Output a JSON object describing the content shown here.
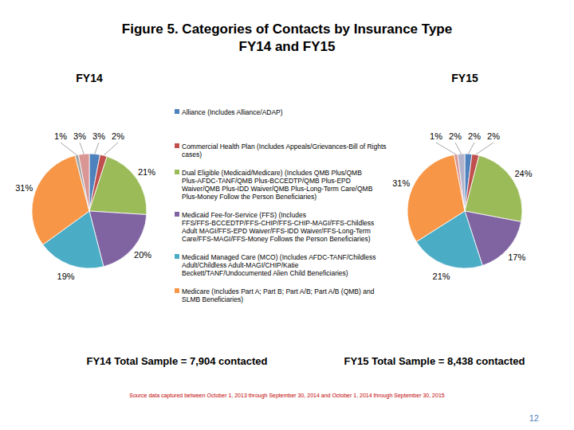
{
  "title": [
    "Figure 5.  Categories of Contacts by Insurance Type",
    "FY14 and FY15"
  ],
  "categories": [
    "Alliance (Includes Alliance/ADAP)",
    "Commercial Health Plan (Includes Appeals/Grievances-Bill of Rights cases)",
    "Dual Eligible (Medicaid/Medicare) (Includes QMB Plus/QMB Plus-AFDC-TANF/QMB Plus-BCCEDTP/QMB Plus-EPD Waiver/QMB Plus-IDD Waiver/QMB Plus-Long-Term Care/QMB Plus-Money Follow the Person Beneficiaries)",
    "Medicaid Fee-for-Service (FFS) (Includes FFS/FFS-BCCEDTP/FFS-CHIP/FFS-CHIP-MAGI/FFS-Childless Adult MAGI/FFS-EPD Waiver/FFS-IDD Waiver/FFS-Long-Term Care/FFS-MAGI/FFS-Money Follows the Person Beneficiaries)",
    "Medicaid Managed Care (MCO) (Includes AFDC-TANF/Childless Adult/Childless Adult-MAGI/CHIP/Katie Beckett/TANF/Undocumented Alien Child Beneficiaries)",
    "Medicare (Includes Part A; Part B; Part A/B; Part A/B (QMB) and SLMB Beneficiaries)",
    null,
    null
  ],
  "legend": "top",
  "chart_data": [
    {
      "type": "pie",
      "title": "FY14",
      "values": [
        3,
        2,
        21,
        20,
        19,
        31,
        1,
        3
      ],
      "value_labels": [
        "3%",
        "2%",
        "21%",
        "20%",
        "19%",
        "31%",
        "1%",
        "3%"
      ],
      "colors": [
        "#4f81bd",
        "#c0504d",
        "#9bbb59",
        "#8064a2",
        "#4bacc6",
        "#f79646",
        "#a5a5a5",
        "#d99694"
      ],
      "data_labels": true,
      "annotations": [
        "FY14 Total Sample = 7,904 contacted"
      ]
    },
    {
      "type": "pie",
      "title": "FY15",
      "values": [
        2,
        2,
        24,
        17,
        21,
        31,
        1,
        2
      ],
      "value_labels": [
        "2%",
        "2%",
        "24%",
        "17%",
        "21%",
        "31%",
        "1%",
        "2%"
      ],
      "colors": [
        "#4f81bd",
        "#c0504d",
        "#9bbb59",
        "#8064a2",
        "#4bacc6",
        "#f79646",
        "#d99694",
        "#b3b3cc"
      ],
      "data_labels": true,
      "annotations": [
        "FY15 Total Sample = 8,438 contacted"
      ]
    }
  ],
  "source": "Source data captured between October 1, 2013 through September 30, 2014 and October 1, 2014 through September 30, 2015",
  "page": "12"
}
